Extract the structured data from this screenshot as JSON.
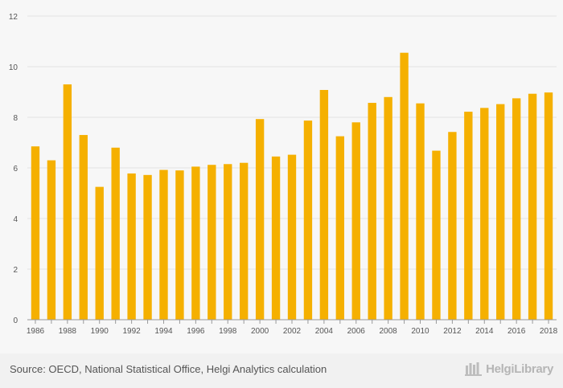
{
  "chart_data": {
    "type": "bar",
    "title": "",
    "xlabel": "",
    "ylabel": "",
    "ylim": [
      0,
      12
    ],
    "yticks": [
      0,
      2,
      4,
      6,
      8,
      10,
      12
    ],
    "grid": true,
    "bar_color": "#f5b000",
    "categories": [
      "1986",
      "1987",
      "1988",
      "1989",
      "1990",
      "1991",
      "1992",
      "1993",
      "1994",
      "1995",
      "1996",
      "1997",
      "1998",
      "1999",
      "2000",
      "2001",
      "2002",
      "2003",
      "2004",
      "2005",
      "2006",
      "2007",
      "2008",
      "2009",
      "2010",
      "2011",
      "2012",
      "2013",
      "2014",
      "2015",
      "2016",
      "2017",
      "2018"
    ],
    "x_tick_labels": [
      "1986",
      "1988",
      "1990",
      "1992",
      "1994",
      "1996",
      "1998",
      "2000",
      "2002",
      "2004",
      "2006",
      "2008",
      "2010",
      "2012",
      "2014",
      "2016",
      "2018"
    ],
    "values": [
      6.85,
      6.3,
      9.3,
      7.3,
      5.25,
      6.8,
      5.78,
      5.72,
      5.92,
      5.9,
      6.05,
      6.12,
      6.15,
      6.2,
      7.93,
      6.45,
      6.52,
      7.87,
      9.08,
      7.25,
      7.8,
      8.57,
      8.8,
      10.55,
      8.55,
      6.68,
      7.42,
      8.22,
      8.37,
      8.52,
      8.75,
      8.93,
      8.98
    ]
  },
  "footer": {
    "source": "Source: OECD, National Statistical Office, Helgi Analytics calculation",
    "logo_text": "HelgiLibrary"
  }
}
